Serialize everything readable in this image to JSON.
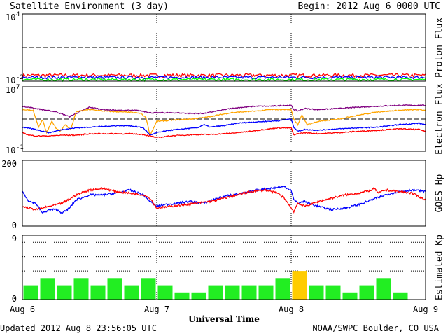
{
  "header": {
    "title": "Satellite Environment (3 day)",
    "begin": "Begin:  2012 Aug 6 0000 UTC"
  },
  "footer": {
    "updated": "Updated 2012 Aug  8 23:56:05 UTC",
    "source": "NOAA/SWPC Boulder, CO USA"
  },
  "chart_data": [
    {
      "type": "line",
      "ylabel": "Proton Flux",
      "yscale": "log",
      "ylim": [
        0.01,
        10000
      ],
      "ytick_labels": [
        {
          "base": "10",
          "exp": "4"
        },
        {
          "base": "10",
          "exp": "-2"
        }
      ],
      "threshold": 10,
      "series": [
        {
          "color": "#ff0000",
          "level": 0.034,
          "noise": 0.012
        },
        {
          "color": "#0000ff",
          "level": 0.022,
          "noise": 0.006
        },
        {
          "color": "#00ff00",
          "level": 0.014,
          "noise": 0.004
        }
      ]
    },
    {
      "type": "line",
      "ylabel": "Electron Flux",
      "yscale": "log",
      "ylim": [
        0.1,
        10000000
      ],
      "ytick_labels": [
        {
          "base": "10",
          "exp": "7"
        },
        {
          "base": "10",
          "exp": "-1"
        }
      ],
      "threshold": 1000,
      "series": [
        {
          "color": "#800080",
          "x": [
            0,
            0.1,
            0.25,
            0.35,
            0.4,
            0.5,
            0.6,
            0.7,
            0.85,
            0.92,
            0.95,
            1.0,
            1.05,
            1.15,
            1.25,
            1.35,
            1.45,
            1.55,
            1.65,
            1.75,
            1.85,
            1.95,
            2.0,
            2.02,
            2.05,
            2.1,
            2.2,
            2.35,
            2.5,
            2.65,
            2.8,
            2.95,
            3.0
          ],
          "y": [
            40000,
            20000,
            8000,
            2000,
            5000,
            30000,
            15000,
            12000,
            12000,
            8000,
            6000,
            6000,
            6000,
            6000,
            5000,
            5000,
            10000,
            20000,
            30000,
            40000,
            40000,
            50000,
            50000,
            15000,
            10000,
            20000,
            15000,
            20000,
            30000,
            40000,
            50000,
            50000,
            50000
          ]
        },
        {
          "color": "#ffa500",
          "x": [
            0,
            0.08,
            0.12,
            0.15,
            0.18,
            0.22,
            0.25,
            0.28,
            0.32,
            0.36,
            0.4,
            0.5,
            0.6,
            0.7,
            0.8,
            0.88,
            0.92,
            0.95,
            1.0,
            1.05,
            1.15,
            1.25,
            1.35,
            1.45,
            1.55,
            1.65,
            1.75,
            1.85,
            1.95,
            2.0,
            2.02,
            2.05,
            2.08,
            2.12,
            2.2,
            2.35,
            2.5,
            2.65,
            2.8,
            2.95,
            3.0
          ],
          "y": [
            15000,
            12000,
            100,
            800,
            20,
            500,
            80,
            30,
            200,
            50,
            8000,
            15000,
            10000,
            8000,
            7000,
            5000,
            1500,
            10,
            500,
            600,
            800,
            1000,
            1500,
            3000,
            6000,
            8000,
            10000,
            15000,
            15000,
            15000,
            1000,
            200,
            3000,
            200,
            500,
            1000,
            3000,
            8000,
            12000,
            15000,
            12000
          ]
        },
        {
          "color": "#0000ff",
          "x": [
            0,
            0.1,
            0.2,
            0.3,
            0.4,
            0.5,
            0.6,
            0.7,
            0.8,
            0.9,
            0.95,
            1.0,
            1.1,
            1.2,
            1.3,
            1.35,
            1.4,
            1.5,
            1.6,
            1.7,
            1.8,
            1.9,
            1.95,
            2.0,
            2.02,
            2.05,
            2.1,
            2.2,
            2.35,
            2.5,
            2.65,
            2.8,
            2.95,
            3.0
          ],
          "y": [
            100,
            50,
            20,
            50,
            80,
            100,
            120,
            150,
            150,
            80,
            10,
            20,
            40,
            60,
            80,
            200,
            100,
            150,
            300,
            400,
            500,
            600,
            800,
            1000,
            100,
            30,
            50,
            40,
            60,
            80,
            100,
            200,
            300,
            200
          ]
        },
        {
          "color": "#ff0000",
          "x": [
            0,
            0.05,
            0.1,
            0.2,
            0.3,
            0.4,
            0.5,
            0.6,
            0.7,
            0.8,
            0.9,
            1.0,
            1.1,
            1.2,
            1.3,
            1.4,
            1.5,
            1.6,
            1.7,
            1.8,
            1.9,
            2.0,
            2.02,
            2.05,
            2.1,
            2.2,
            2.35,
            2.5,
            2.65,
            2.8,
            2.95,
            3.0
          ],
          "y": [
            20,
            10,
            8,
            8,
            10,
            10,
            15,
            15,
            15,
            15,
            12,
            5,
            8,
            10,
            12,
            12,
            15,
            20,
            30,
            50,
            80,
            80,
            10,
            15,
            20,
            15,
            20,
            30,
            40,
            60,
            50,
            30
          ]
        }
      ]
    },
    {
      "type": "line",
      "ylabel": "GOES Hp",
      "ylim": [
        0,
        200
      ],
      "yticks": [
        0,
        200
      ],
      "series": [
        {
          "color": "#0000ff",
          "x": [
            0,
            0.05,
            0.1,
            0.15,
            0.2,
            0.25,
            0.3,
            0.35,
            0.4,
            0.5,
            0.6,
            0.7,
            0.8,
            0.9,
            0.95,
            1.0,
            1.05,
            1.15,
            1.25,
            1.35,
            1.45,
            1.55,
            1.65,
            1.75,
            1.85,
            1.95,
            2.0,
            2.02,
            2.05,
            2.1,
            2.2,
            2.3,
            2.4,
            2.5,
            2.6,
            2.7,
            2.8,
            2.9,
            3.0
          ],
          "y": [
            105,
            75,
            70,
            40,
            50,
            50,
            40,
            55,
            80,
            95,
            95,
            100,
            110,
            95,
            75,
            60,
            65,
            70,
            75,
            70,
            85,
            95,
            100,
            110,
            115,
            120,
            110,
            80,
            70,
            75,
            60,
            50,
            55,
            65,
            80,
            95,
            105,
            110,
            105
          ]
        },
        {
          "color": "#ff0000",
          "x": [
            0,
            0.05,
            0.1,
            0.2,
            0.3,
            0.4,
            0.5,
            0.6,
            0.7,
            0.8,
            0.9,
            0.95,
            1.0,
            1.1,
            1.2,
            1.3,
            1.4,
            1.5,
            1.6,
            1.7,
            1.8,
            1.9,
            1.95,
            2.0,
            2.02,
            2.05,
            2.1,
            2.2,
            2.3,
            2.4,
            2.5,
            2.6,
            2.62,
            2.65,
            2.7,
            2.8,
            2.9,
            3.0
          ],
          "y": [
            60,
            55,
            50,
            60,
            70,
            95,
            110,
            115,
            105,
            100,
            95,
            85,
            55,
            60,
            65,
            70,
            75,
            85,
            95,
            105,
            110,
            100,
            85,
            55,
            45,
            70,
            60,
            75,
            85,
            95,
            100,
            110,
            115,
            100,
            110,
            105,
            100,
            80
          ]
        }
      ]
    },
    {
      "type": "bar",
      "ylabel": "Estimated Kp",
      "ylim": [
        0,
        9
      ],
      "yticks": [
        0,
        9
      ],
      "xlabel": "Universal Time",
      "xtick_labels": [
        "Aug 6",
        "Aug 7",
        "Aug 8",
        "Aug 9"
      ],
      "xlim": [
        0,
        3
      ],
      "dotted_levels": [
        4,
        6,
        8
      ],
      "bar_width_days": 0.125,
      "values": [
        2,
        3,
        2,
        3,
        2,
        3,
        2,
        3,
        2,
        1,
        1,
        2,
        2,
        2,
        2,
        3,
        4,
        2,
        2,
        1,
        2,
        3,
        1
      ],
      "colors": [
        "#22ee22",
        "#22ee22",
        "#22ee22",
        "#22ee22",
        "#22ee22",
        "#22ee22",
        "#22ee22",
        "#22ee22",
        "#22ee22",
        "#22ee22",
        "#22ee22",
        "#22ee22",
        "#22ee22",
        "#22ee22",
        "#22ee22",
        "#22ee22",
        "#ffcc00",
        "#22ee22",
        "#22ee22",
        "#22ee22",
        "#22ee22",
        "#22ee22",
        "#22ee22"
      ]
    }
  ]
}
